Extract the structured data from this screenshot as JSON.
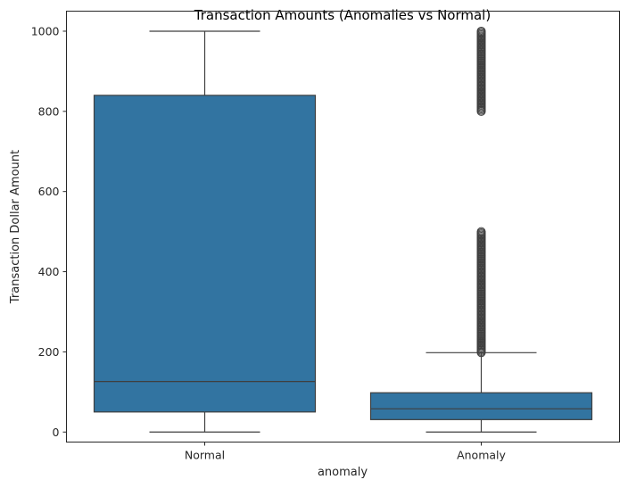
{
  "chart_data": {
    "type": "box",
    "title": "Transaction Amounts (Anomalies vs Normal)",
    "xlabel": "anomaly",
    "ylabel": "Transaction Dollar Amount",
    "categories": [
      "Normal",
      "Anomaly"
    ],
    "ylim": [
      -25,
      1050
    ],
    "yticks": [
      0,
      200,
      400,
      600,
      800,
      1000
    ],
    "grid": false,
    "legend": "none",
    "box_color": "#3274a1",
    "line_color": "#3f3f3f",
    "boxes": [
      {
        "category": "Normal",
        "whisker_low": 0,
        "q1": 50,
        "median": 126,
        "q3": 840,
        "whisker_high": 1000,
        "outlier_ranges": []
      },
      {
        "category": "Anomaly",
        "whisker_low": 0,
        "q1": 31,
        "median": 58,
        "q3": 98,
        "whisker_high": 198,
        "outlier_ranges": [
          [
            198,
            500
          ],
          [
            800,
            1000
          ]
        ]
      }
    ]
  }
}
